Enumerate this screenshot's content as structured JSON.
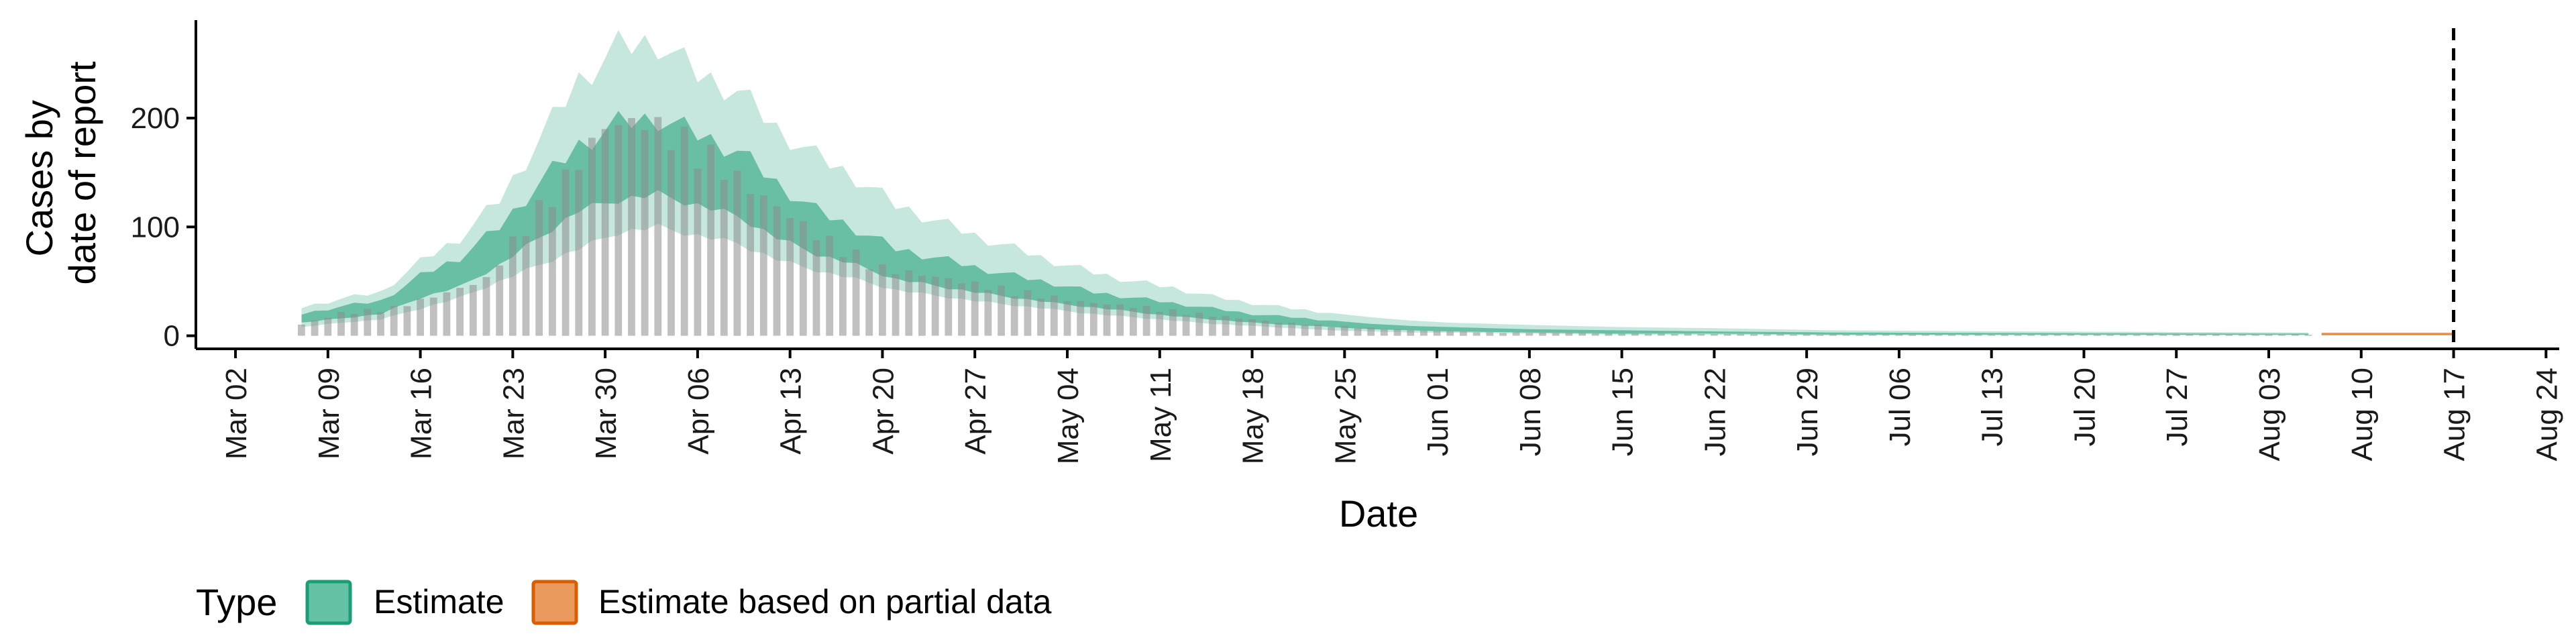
{
  "chart_data": {
    "type": "area",
    "xlabel": "Date",
    "ylabel_lines": [
      "Cases by",
      "date of report"
    ],
    "x_ticks": [
      "Mar 02",
      "Mar 09",
      "Mar 16",
      "Mar 23",
      "Mar 30",
      "Apr 06",
      "Apr 13",
      "Apr 20",
      "Apr 27",
      "May 04",
      "May 11",
      "May 18",
      "May 25",
      "Jun 01",
      "Jun 08",
      "Jun 15",
      "Jun 22",
      "Jun 29",
      "Jul 06",
      "Jul 13",
      "Jul 20",
      "Jul 27",
      "Aug 03",
      "Aug 10",
      "Aug 17",
      "Aug 24"
    ],
    "y_ticks": [
      0,
      100,
      200
    ],
    "x_range": [
      "2020-02-28",
      "2020-08-25"
    ],
    "ylim": [
      -12,
      290
    ],
    "reference_line": "2020-08-17",
    "reported_cases_points": [
      [
        "2020-03-07",
        10
      ],
      [
        "2020-03-10",
        20
      ],
      [
        "2020-03-14",
        25
      ],
      [
        "2020-03-18",
        38
      ],
      [
        "2020-03-21",
        50
      ],
      [
        "2020-03-24",
        100
      ],
      [
        "2020-03-27",
        140
      ],
      [
        "2020-03-30",
        185
      ],
      [
        "2020-04-02",
        190
      ],
      [
        "2020-04-06",
        170
      ],
      [
        "2020-04-10",
        130
      ],
      [
        "2020-04-15",
        90
      ],
      [
        "2020-04-20",
        60
      ],
      [
        "2020-04-25",
        50
      ],
      [
        "2020-04-30",
        40
      ],
      [
        "2020-05-05",
        30
      ],
      [
        "2020-05-10",
        25
      ],
      [
        "2020-05-15",
        18
      ],
      [
        "2020-05-20",
        12
      ],
      [
        "2020-05-25",
        8
      ],
      [
        "2020-05-30",
        5
      ],
      [
        "2020-06-05",
        3
      ],
      [
        "2020-06-15",
        2
      ],
      [
        "2020-07-01",
        1
      ],
      [
        "2020-08-06",
        1
      ]
    ],
    "estimate_points": [
      [
        "2020-03-07",
        [
          8,
          12,
          16,
          20,
          26
        ]
      ],
      [
        "2020-03-10",
        [
          12,
          16,
          22,
          27,
          34
        ]
      ],
      [
        "2020-03-13",
        [
          15,
          20,
          26,
          32,
          40
        ]
      ],
      [
        "2020-03-16",
        [
          25,
          35,
          42,
          55,
          68
        ]
      ],
      [
        "2020-03-19",
        [
          35,
          45,
          60,
          72,
          90
        ]
      ],
      [
        "2020-03-22",
        [
          50,
          65,
          85,
          100,
          125
        ]
      ],
      [
        "2020-03-25",
        [
          65,
          90,
          115,
          140,
          180
        ]
      ],
      [
        "2020-03-28",
        [
          80,
          115,
          145,
          175,
          235
        ]
      ],
      [
        "2020-03-31",
        [
          95,
          125,
          160,
          195,
          265
        ]
      ],
      [
        "2020-04-03",
        [
          100,
          130,
          165,
          200,
          270
        ]
      ],
      [
        "2020-04-06",
        [
          92,
          120,
          150,
          185,
          240
        ]
      ],
      [
        "2020-04-09",
        [
          85,
          110,
          138,
          170,
          225
        ]
      ],
      [
        "2020-04-12",
        [
          70,
          90,
          112,
          140,
          190
        ]
      ],
      [
        "2020-04-15",
        [
          60,
          75,
          92,
          115,
          165
        ]
      ],
      [
        "2020-04-18",
        [
          52,
          65,
          78,
          98,
          145
        ]
      ],
      [
        "2020-04-21",
        [
          42,
          52,
          64,
          80,
          120
        ]
      ],
      [
        "2020-04-24",
        [
          37,
          46,
          56,
          72,
          106
        ]
      ],
      [
        "2020-04-27",
        [
          32,
          40,
          50,
          63,
          92
        ]
      ],
      [
        "2020-04-30",
        [
          28,
          35,
          44,
          55,
          80
        ]
      ],
      [
        "2020-05-03",
        [
          24,
          30,
          38,
          48,
          68
        ]
      ],
      [
        "2020-05-06",
        [
          20,
          26,
          32,
          40,
          58
        ]
      ],
      [
        "2020-05-09",
        [
          17,
          22,
          28,
          35,
          50
        ]
      ],
      [
        "2020-05-12",
        [
          14,
          18,
          24,
          30,
          44
        ]
      ],
      [
        "2020-05-15",
        [
          11,
          15,
          20,
          25,
          36
        ]
      ],
      [
        "2020-05-18",
        [
          9,
          12,
          16,
          20,
          30
        ]
      ],
      [
        "2020-05-21",
        [
          7,
          10,
          13,
          17,
          25
        ]
      ],
      [
        "2020-05-24",
        [
          5,
          8,
          10,
          14,
          21
        ]
      ],
      [
        "2020-05-27",
        [
          4,
          6,
          8,
          11,
          17
        ]
      ],
      [
        "2020-05-30",
        [
          3,
          5,
          7,
          9,
          14
        ]
      ],
      [
        "2020-06-02",
        [
          3,
          4,
          6,
          8,
          12
        ]
      ],
      [
        "2020-06-08",
        [
          2,
          3,
          4,
          6,
          10
        ]
      ],
      [
        "2020-06-15",
        [
          1,
          2,
          3,
          5,
          8
        ]
      ],
      [
        "2020-06-22",
        [
          1,
          2,
          3,
          4,
          7
        ]
      ],
      [
        "2020-07-01",
        [
          0.5,
          1,
          2,
          3,
          5
        ]
      ],
      [
        "2020-07-15",
        [
          0.5,
          1,
          1.5,
          2.5,
          4
        ]
      ],
      [
        "2020-08-06",
        [
          0.5,
          1,
          1.5,
          2,
          3
        ]
      ]
    ],
    "partial_estimate_points": [
      [
        "2020-08-07",
        [
          0.5,
          1,
          1.5,
          2,
          3
        ]
      ],
      [
        "2020-08-17",
        [
          0.5,
          1,
          1.5,
          2,
          3
        ]
      ]
    ],
    "legend": {
      "title": "Type",
      "placement": "bottom-left",
      "items": [
        {
          "label": "Estimate",
          "fill": "#66c2a5",
          "stroke": "#1b9e77"
        },
        {
          "label": "Estimate based on partial data",
          "fill": "#e99a5c",
          "stroke": "#d95f02"
        }
      ]
    },
    "colors": {
      "estimate": "#1b9e77",
      "partial": "#d95f02",
      "bars": "#8c8c8c",
      "axis": "#000000"
    }
  }
}
